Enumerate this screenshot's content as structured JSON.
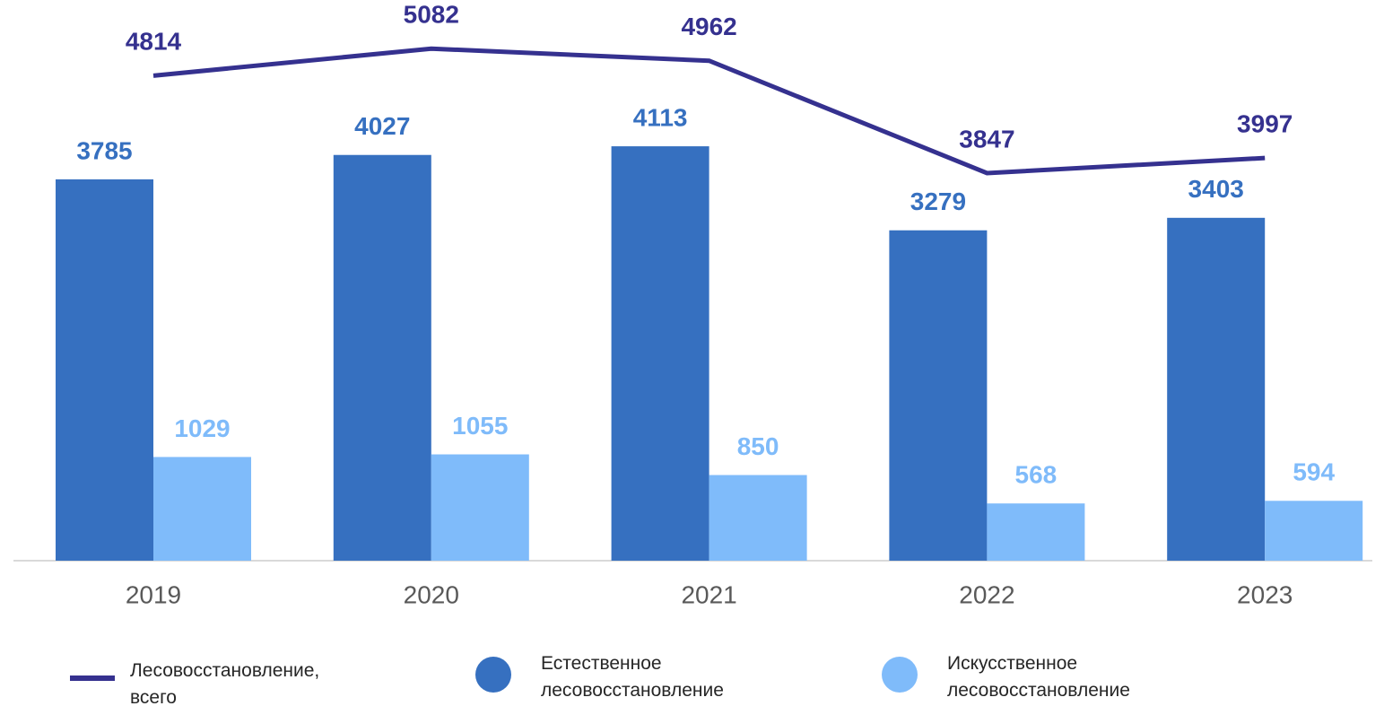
{
  "chart_data": {
    "type": "bar",
    "categories": [
      "2019",
      "2020",
      "2021",
      "2022",
      "2023"
    ],
    "ylim": [
      0,
      5565
    ],
    "series": [
      {
        "name": "Лесовосстановление, всего",
        "type": "line",
        "color": "#35318f",
        "values": [
          4814,
          5082,
          4962,
          3847,
          3997
        ]
      },
      {
        "name": "Естественное лесовосстановление",
        "type": "bar",
        "color": "#3670c0",
        "values": [
          3785,
          4027,
          4113,
          3279,
          3403
        ]
      },
      {
        "name": "Искусственное лесовосстановление",
        "type": "bar",
        "color": "#7fbbfa",
        "values": [
          1029,
          1055,
          850,
          568,
          594
        ]
      }
    ]
  }
}
